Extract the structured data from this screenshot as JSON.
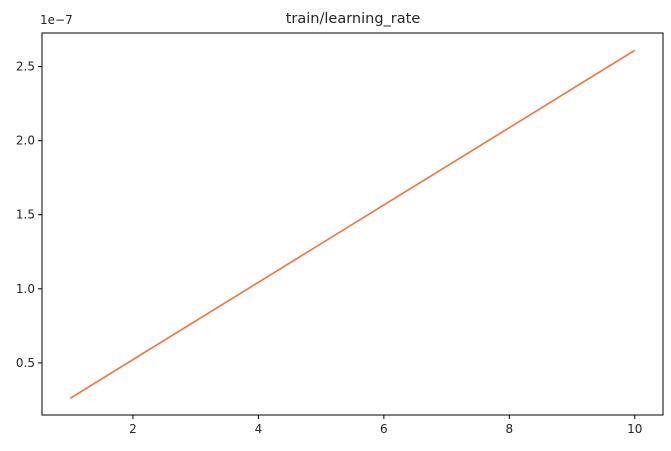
{
  "chart_data": {
    "type": "line",
    "title": "train/learning_rate",
    "xlabel": "",
    "ylabel": "",
    "y_offset_label": "1e−7",
    "xlim": [
      0.55,
      10.45
    ],
    "ylim": [
      0.148,
      2.727
    ],
    "x_ticks": [
      2,
      4,
      6,
      8,
      10
    ],
    "x_tick_labels": [
      "2",
      "4",
      "6",
      "8",
      "10"
    ],
    "y_ticks": [
      0.5,
      1.0,
      1.5,
      2.0,
      2.5
    ],
    "y_tick_labels": [
      "0.5",
      "1.0",
      "1.5",
      "2.0",
      "2.5"
    ],
    "grid": false,
    "series": [
      {
        "color": "#f4713f",
        "x": [
          1,
          2,
          3,
          4,
          5,
          6,
          7,
          8,
          9,
          10
        ],
        "y": [
          0.261,
          0.522,
          0.783,
          1.044,
          1.305,
          1.566,
          1.827,
          2.088,
          2.349,
          2.61
        ]
      }
    ]
  }
}
